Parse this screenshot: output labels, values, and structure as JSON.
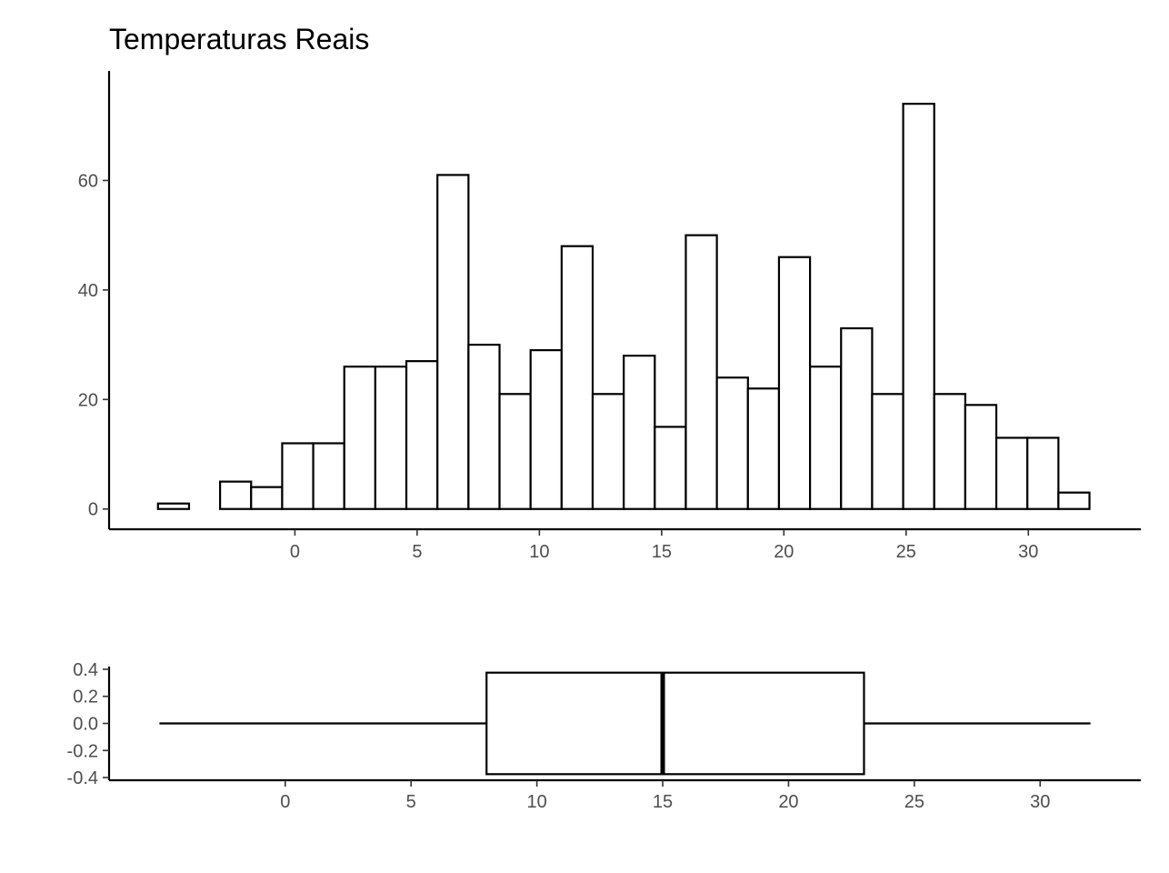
{
  "title": "Temperaturas Reais",
  "chart_data": [
    {
      "type": "bar",
      "subtype": "histogram",
      "title": "Temperaturas Reais",
      "xlabel": "",
      "ylabel": "",
      "bin_width": 1.27,
      "bins": [
        {
          "start": -5.6,
          "end": -4.33,
          "count": 1
        },
        {
          "start": -4.33,
          "end": -3.06,
          "count": 0
        },
        {
          "start": -3.06,
          "end": -1.79,
          "count": 5
        },
        {
          "start": -1.79,
          "end": -0.52,
          "count": 4
        },
        {
          "start": -0.52,
          "end": 0.75,
          "count": 12
        },
        {
          "start": 0.75,
          "end": 2.02,
          "count": 12
        },
        {
          "start": 2.02,
          "end": 3.29,
          "count": 26
        },
        {
          "start": 3.29,
          "end": 4.56,
          "count": 26
        },
        {
          "start": 4.56,
          "end": 5.83,
          "count": 27
        },
        {
          "start": 5.83,
          "end": 7.1,
          "count": 61
        },
        {
          "start": 7.1,
          "end": 8.37,
          "count": 30
        },
        {
          "start": 8.37,
          "end": 9.64,
          "count": 21
        },
        {
          "start": 9.64,
          "end": 10.91,
          "count": 29
        },
        {
          "start": 10.91,
          "end": 12.18,
          "count": 48
        },
        {
          "start": 12.18,
          "end": 13.45,
          "count": 21
        },
        {
          "start": 13.45,
          "end": 14.72,
          "count": 28
        },
        {
          "start": 14.72,
          "end": 15.99,
          "count": 15
        },
        {
          "start": 15.99,
          "end": 17.26,
          "count": 50
        },
        {
          "start": 17.26,
          "end": 18.53,
          "count": 24
        },
        {
          "start": 18.53,
          "end": 19.8,
          "count": 22
        },
        {
          "start": 19.8,
          "end": 21.07,
          "count": 46
        },
        {
          "start": 21.07,
          "end": 22.34,
          "count": 26
        },
        {
          "start": 22.34,
          "end": 23.61,
          "count": 33
        },
        {
          "start": 23.61,
          "end": 24.88,
          "count": 21
        },
        {
          "start": 24.88,
          "end": 26.15,
          "count": 74
        },
        {
          "start": 26.15,
          "end": 27.42,
          "count": 21
        },
        {
          "start": 27.42,
          "end": 28.69,
          "count": 19
        },
        {
          "start": 28.69,
          "end": 29.96,
          "count": 13
        },
        {
          "start": 29.96,
          "end": 31.23,
          "count": 13
        },
        {
          "start": 31.23,
          "end": 32.5,
          "count": 3
        }
      ],
      "xlim": [
        -7.6,
        34.6
      ],
      "ylim": [
        -3.7,
        80
      ],
      "x_ticks": [
        0,
        5,
        10,
        15,
        20,
        25,
        30
      ],
      "x_tick_labels": [
        "0",
        "5",
        "10",
        "15",
        "20",
        "25",
        "30"
      ],
      "y_ticks": [
        0,
        20,
        40,
        60
      ],
      "y_tick_labels": [
        "0",
        "20",
        "40",
        "60"
      ],
      "grid": false,
      "legend": "none"
    },
    {
      "type": "boxplot",
      "orientation": "horizontal",
      "min": -5.0,
      "q1": 8.0,
      "median": 15.0,
      "q3": 23.0,
      "max": 32.0,
      "box_half_height": 0.375,
      "xlim": [
        -7.0,
        34.0
      ],
      "ylim": [
        -0.42,
        0.42
      ],
      "x_ticks": [
        0,
        5,
        10,
        15,
        20,
        25,
        30
      ],
      "x_tick_labels": [
        "0",
        "5",
        "10",
        "15",
        "20",
        "25",
        "30"
      ],
      "y_ticks": [
        0.4,
        0.2,
        0.0,
        -0.2,
        -0.4
      ],
      "y_tick_labels": [
        "0.4",
        "0.2",
        "0.0",
        "-0.2",
        "-0.4"
      ],
      "grid": false,
      "legend": "none"
    }
  ]
}
